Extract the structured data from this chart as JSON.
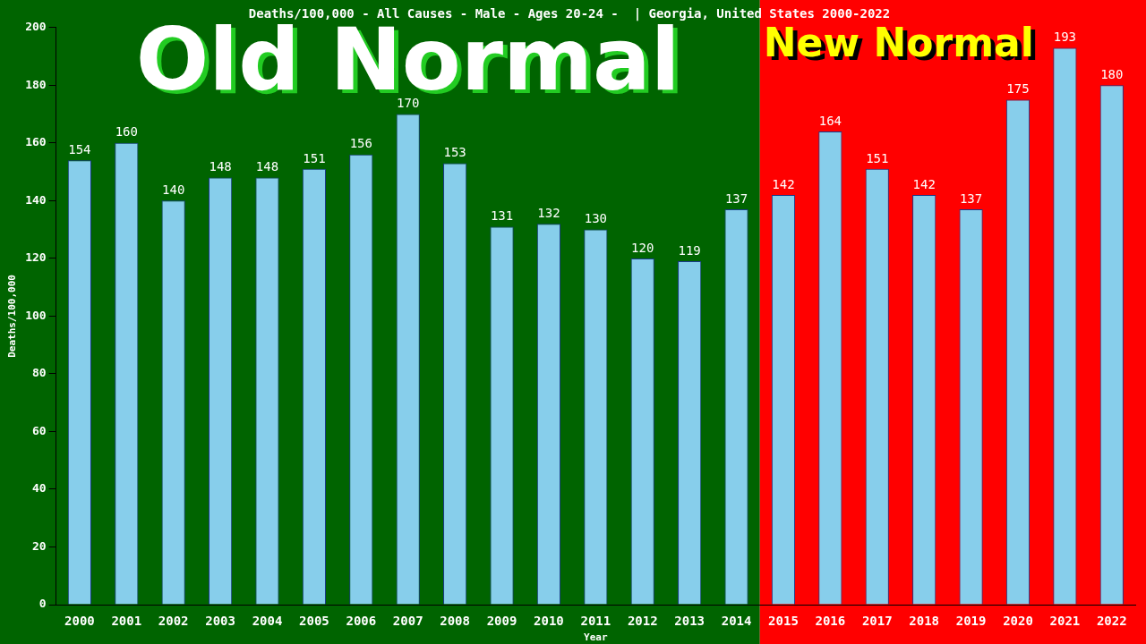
{
  "chart_data": {
    "type": "bar",
    "title": "Deaths/100,000 - All Causes - Male - Ages 20-24 -  | Georgia, United States 2000-2022",
    "xlabel": "Year",
    "ylabel": "Deaths/100,000",
    "categories": [
      "2000",
      "2001",
      "2002",
      "2003",
      "2004",
      "2005",
      "2006",
      "2007",
      "2008",
      "2009",
      "2010",
      "2011",
      "2012",
      "2013",
      "2014",
      "2015",
      "2016",
      "2017",
      "2018",
      "2019",
      "2020",
      "2021",
      "2022"
    ],
    "values": [
      154,
      160,
      140,
      148,
      148,
      151,
      156,
      170,
      153,
      131,
      132,
      130,
      120,
      119,
      137,
      142,
      164,
      151,
      142,
      137,
      175,
      193,
      180
    ],
    "color": "#87ceeb",
    "data_labels": true,
    "ylim": [
      0,
      200
    ],
    "yticks": [
      0,
      20,
      40,
      60,
      80,
      100,
      120,
      140,
      160,
      180,
      200
    ],
    "grid": false,
    "legend": false,
    "bands": [
      {
        "axis": "x",
        "from": "2000",
        "to": "2014",
        "label": "Old Normal",
        "color": "#006400"
      },
      {
        "axis": "x",
        "from": "2015",
        "to": "2022",
        "label": "New Normal",
        "color": "#ff0000"
      }
    ]
  }
}
